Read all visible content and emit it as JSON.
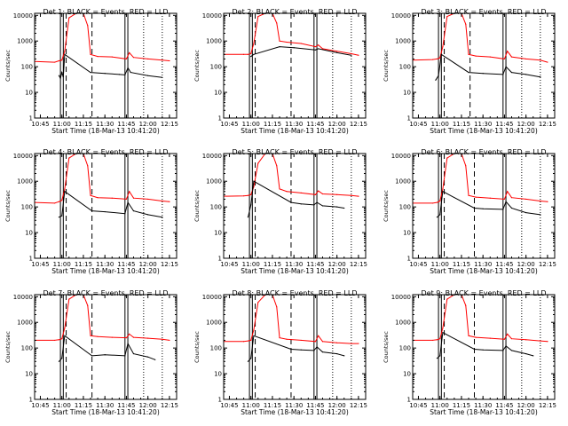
{
  "chart_data": [
    {
      "type": "line",
      "title": "Det 1: BLACK = Events, RED = LLD",
      "xlabel": "Start Time (18-Mar-13 10:41:20)",
      "ylabel": "Counts/sec",
      "yscale": "log",
      "ylim": [
        1,
        12000
      ],
      "xlim": [
        "10:41",
        "12:20"
      ],
      "x_ticks": [
        "10:45",
        "11:00",
        "11:15",
        "11:30",
        "11:45",
        "12:00",
        "12:15"
      ],
      "y_ticks": [
        "1",
        "10",
        "100",
        "1000",
        "10000"
      ],
      "series": [
        {
          "name": "RED = LLD",
          "color": "#ff0000",
          "x": [
            "10:41",
            "10:55",
            "10:58",
            "11:00",
            "11:02",
            "11:05",
            "11:10",
            "11:15",
            "11:18",
            "11:20",
            "11:25",
            "11:35",
            "11:45",
            "11:47",
            "11:50",
            "12:00",
            "12:10",
            "12:15"
          ],
          "y": [
            160,
            150,
            170,
            180,
            400,
            8000,
            12000,
            12000,
            4000,
            300,
            250,
            240,
            200,
            350,
            230,
            200,
            180,
            170
          ]
        },
        {
          "name": "BLACK = Events",
          "color": "#000000",
          "x": [
            "10:58",
            "10:59",
            "11:00",
            "11:01",
            "11:02",
            "11:20",
            "11:30",
            "11:40",
            "11:44",
            "11:46",
            "11:48",
            "12:00",
            "12:10"
          ],
          "y": [
            45,
            35,
            60,
            40,
            300,
            60,
            55,
            50,
            48,
            90,
            60,
            45,
            38
          ]
        }
      ],
      "solid_lines_x": [
        "10:59",
        "11:01",
        "11:44",
        "11:46"
      ],
      "dashed_lines_x": [
        "11:03",
        "11:21"
      ],
      "dotted_lines_x": [
        "11:57",
        "12:10"
      ]
    },
    {
      "type": "line",
      "title": "Det 2: BLACK = Events, RED = LLD",
      "xlabel": "Start Time (18-Mar-13 10:41:20)",
      "ylabel": "Counts/sec",
      "yscale": "log",
      "ylim": [
        1,
        12000
      ],
      "xlim": [
        "10:41",
        "12:20"
      ],
      "x_ticks": [
        "10:45",
        "11:00",
        "11:15",
        "11:30",
        "11:45",
        "12:00",
        "12:15"
      ],
      "y_ticks": [
        "1",
        "10",
        "100",
        "1000",
        "10000"
      ],
      "series": [
        {
          "name": "RED = LLD",
          "color": "#ff0000",
          "x": [
            "10:41",
            "10:55",
            "10:58",
            "11:00",
            "11:02",
            "11:05",
            "11:10",
            "11:15",
            "11:18",
            "11:20",
            "11:25",
            "11:35",
            "11:45",
            "11:47",
            "11:50",
            "12:00",
            "12:10",
            "12:15"
          ],
          "y": [
            300,
            300,
            300,
            320,
            800,
            9000,
            12000,
            12000,
            5000,
            1000,
            900,
            800,
            600,
            700,
            500,
            400,
            320,
            280
          ]
        },
        {
          "name": "BLACK = Events",
          "color": "#000000",
          "x": [
            "11:00",
            "11:02",
            "11:20",
            "11:30",
            "11:45",
            "11:47",
            "12:00",
            "12:10"
          ],
          "y": [
            250,
            300,
            600,
            550,
            450,
            500,
            350,
            280
          ]
        }
      ],
      "solid_lines_x": [
        "10:59",
        "11:01",
        "11:44",
        "11:46"
      ],
      "dashed_lines_x": [
        "11:03",
        "11:28"
      ],
      "dotted_lines_x": [
        "11:57",
        "12:10"
      ]
    },
    {
      "type": "line",
      "title": "Det 3: BLACK = Events, RED = LLD",
      "xlabel": "Start Time (18-Mar-13 10:41:20)",
      "ylabel": "Counts/sec",
      "yscale": "log",
      "ylim": [
        1,
        12000
      ],
      "xlim": [
        "10:41",
        "12:20"
      ],
      "x_ticks": [
        "10:45",
        "11:00",
        "11:15",
        "11:30",
        "11:45",
        "12:00",
        "12:15"
      ],
      "y_ticks": [
        "1",
        "10",
        "100",
        "1000",
        "10000"
      ],
      "series": [
        {
          "name": "RED = LLD",
          "color": "#ff0000",
          "x": [
            "10:41",
            "10:55",
            "10:58",
            "11:00",
            "11:02",
            "11:05",
            "11:10",
            "11:15",
            "11:18",
            "11:20",
            "11:25",
            "11:35",
            "11:45",
            "11:47",
            "11:50",
            "12:00",
            "12:10",
            "12:15"
          ],
          "y": [
            180,
            190,
            200,
            220,
            600,
            9000,
            12000,
            12000,
            4500,
            300,
            260,
            240,
            200,
            400,
            240,
            200,
            180,
            150
          ]
        },
        {
          "name": "BLACK = Events",
          "color": "#000000",
          "x": [
            "10:57",
            "10:59",
            "11:01",
            "11:20",
            "11:30",
            "11:44",
            "11:46",
            "11:50",
            "12:00",
            "12:10"
          ],
          "y": [
            30,
            45,
            300,
            60,
            55,
            50,
            100,
            60,
            50,
            40
          ]
        }
      ],
      "solid_lines_x": [
        "10:59",
        "11:01",
        "11:44",
        "11:46"
      ],
      "dashed_lines_x": [
        "11:03",
        "11:21"
      ],
      "dotted_lines_x": [
        "11:57",
        "12:10"
      ]
    },
    {
      "type": "line",
      "title": "Det 4: BLACK = Events, RED = LLD",
      "xlabel": "Start Time (18-Mar-13 10:41:20)",
      "ylabel": "Counts/sec",
      "yscale": "log",
      "ylim": [
        1,
        12000
      ],
      "xlim": [
        "10:41",
        "12:20"
      ],
      "x_ticks": [
        "10:45",
        "11:00",
        "11:15",
        "11:30",
        "11:45",
        "12:00",
        "12:15"
      ],
      "y_ticks": [
        "1",
        "10",
        "100",
        "1000",
        "10000"
      ],
      "series": [
        {
          "name": "RED = LLD",
          "color": "#ff0000",
          "x": [
            "10:41",
            "10:55",
            "10:58",
            "11:00",
            "11:02",
            "11:05",
            "11:10",
            "11:15",
            "11:18",
            "11:20",
            "11:25",
            "11:35",
            "11:45",
            "11:47",
            "11:50",
            "12:00",
            "12:10",
            "12:15"
          ],
          "y": [
            150,
            140,
            160,
            180,
            500,
            8000,
            12000,
            12000,
            4000,
            280,
            230,
            220,
            200,
            400,
            220,
            200,
            170,
            160
          ]
        },
        {
          "name": "BLACK = Events",
          "color": "#000000",
          "x": [
            "10:58",
            "11:00",
            "11:02",
            "11:21",
            "11:30",
            "11:44",
            "11:46",
            "11:50",
            "12:00",
            "12:10"
          ],
          "y": [
            40,
            45,
            400,
            70,
            65,
            55,
            150,
            70,
            50,
            40
          ]
        }
      ],
      "solid_lines_x": [
        "10:59",
        "11:01",
        "11:44",
        "11:46"
      ],
      "dashed_lines_x": [
        "11:03",
        "11:21"
      ],
      "dotted_lines_x": [
        "11:57",
        "12:10"
      ]
    },
    {
      "type": "line",
      "title": "Det 5: BLACK = Events, RED = LLD",
      "xlabel": "Start Time (18-Mar-13 10:41:20)",
      "ylabel": "Counts/sec",
      "yscale": "log",
      "ylim": [
        1,
        12000
      ],
      "xlim": [
        "10:41",
        "12:20"
      ],
      "x_ticks": [
        "10:45",
        "11:00",
        "11:15",
        "11:30",
        "11:45",
        "12:00",
        "12:15"
      ],
      "y_ticks": [
        "1",
        "10",
        "100",
        "1000",
        "10000"
      ],
      "series": [
        {
          "name": "RED = LLD",
          "color": "#ff0000",
          "x": [
            "10:41",
            "10:55",
            "10:58",
            "11:00",
            "11:02",
            "11:05",
            "11:10",
            "11:15",
            "11:18",
            "11:20",
            "11:25",
            "11:35",
            "11:45",
            "11:47",
            "11:50",
            "12:00",
            "12:10",
            "12:15"
          ],
          "y": [
            260,
            270,
            280,
            300,
            600,
            5000,
            12000,
            12000,
            4000,
            500,
            400,
            350,
            300,
            420,
            320,
            300,
            280,
            260
          ]
        },
        {
          "name": "BLACK = Events",
          "color": "#000000",
          "x": [
            "10:58",
            "11:00",
            "11:02",
            "11:28",
            "11:35",
            "11:44",
            "11:46",
            "11:50",
            "12:00",
            "12:05"
          ],
          "y": [
            40,
            120,
            1000,
            150,
            130,
            120,
            150,
            110,
            100,
            90
          ]
        }
      ],
      "solid_lines_x": [
        "10:59",
        "11:01",
        "11:44",
        "11:46"
      ],
      "dashed_lines_x": [
        "11:03",
        "11:28"
      ],
      "dotted_lines_x": [
        "11:57",
        "12:10"
      ]
    },
    {
      "type": "line",
      "title": "Det 6: BLACK = Events, RED = LLD",
      "xlabel": "Start Time (18-Mar-13 10:41:20)",
      "ylabel": "Counts/sec",
      "yscale": "log",
      "ylim": [
        1,
        12000
      ],
      "xlim": [
        "10:41",
        "12:20"
      ],
      "x_ticks": [
        "10:45",
        "11:00",
        "11:15",
        "11:30",
        "11:45",
        "12:00",
        "12:15"
      ],
      "y_ticks": [
        "1",
        "10",
        "100",
        "1000",
        "10000"
      ],
      "series": [
        {
          "name": "RED = LLD",
          "color": "#ff0000",
          "x": [
            "10:41",
            "10:55",
            "10:58",
            "11:00",
            "11:02",
            "11:05",
            "11:10",
            "11:15",
            "11:18",
            "11:20",
            "11:25",
            "11:35",
            "11:45",
            "11:47",
            "11:50",
            "12:00",
            "12:10",
            "12:15"
          ],
          "y": [
            140,
            140,
            150,
            170,
            500,
            8000,
            12000,
            12000,
            4000,
            280,
            240,
            220,
            200,
            400,
            230,
            200,
            170,
            160
          ]
        },
        {
          "name": "BLACK = Events",
          "color": "#000000",
          "x": [
            "10:58",
            "11:00",
            "11:02",
            "11:24",
            "11:30",
            "11:44",
            "11:46",
            "11:50",
            "12:00",
            "12:10"
          ],
          "y": [
            40,
            50,
            400,
            90,
            85,
            80,
            160,
            90,
            60,
            50
          ]
        }
      ],
      "solid_lines_x": [
        "10:59",
        "11:01",
        "11:44",
        "11:46"
      ],
      "dashed_lines_x": [
        "11:03",
        "11:24"
      ],
      "dotted_lines_x": [
        "11:57",
        "12:10"
      ]
    },
    {
      "type": "line",
      "title": "Det 7: BLACK = Events, RED = LLD",
      "xlabel": "Start Time (18-Mar-13 10:41:20)",
      "ylabel": "Counts/sec",
      "yscale": "log",
      "ylim": [
        1,
        12000
      ],
      "xlim": [
        "10:41",
        "12:20"
      ],
      "x_ticks": [
        "10:45",
        "11:00",
        "11:15",
        "11:30",
        "11:45",
        "12:00",
        "12:15"
      ],
      "y_ticks": [
        "1",
        "10",
        "100",
        "1000",
        "10000"
      ],
      "series": [
        {
          "name": "RED = LLD",
          "color": "#ff0000",
          "x": [
            "10:41",
            "10:55",
            "10:58",
            "11:00",
            "11:02",
            "11:05",
            "11:10",
            "11:15",
            "11:18",
            "11:20",
            "11:25",
            "11:35",
            "11:45",
            "11:47",
            "11:50",
            "12:00",
            "12:10",
            "12:15"
          ],
          "y": [
            200,
            200,
            210,
            230,
            600,
            8000,
            12000,
            12000,
            4500,
            300,
            280,
            260,
            250,
            350,
            260,
            240,
            220,
            200
          ]
        },
        {
          "name": "BLACK = Events",
          "color": "#000000",
          "x": [
            "10:58",
            "11:00",
            "11:02",
            "11:21",
            "11:30",
            "11:44",
            "11:46",
            "11:50",
            "12:00",
            "12:05"
          ],
          "y": [
            30,
            40,
            300,
            50,
            55,
            50,
            150,
            60,
            45,
            35
          ]
        }
      ],
      "solid_lines_x": [
        "10:59",
        "11:01",
        "11:44",
        "11:46"
      ],
      "dashed_lines_x": [
        "11:03",
        "11:21"
      ],
      "dotted_lines_x": [
        "11:57",
        "12:10"
      ]
    },
    {
      "type": "line",
      "title": "Det 8: BLACK = Events, RED = LLD",
      "xlabel": "Start Time (18-Mar-13 10:41:20)",
      "ylabel": "Counts/sec",
      "yscale": "log",
      "ylim": [
        1,
        12000
      ],
      "xlim": [
        "10:41",
        "12:20"
      ],
      "x_ticks": [
        "10:45",
        "11:00",
        "11:15",
        "11:30",
        "11:45",
        "12:00",
        "12:15"
      ],
      "y_ticks": [
        "1",
        "10",
        "100",
        "1000",
        "10000"
      ],
      "series": [
        {
          "name": "RED = LLD",
          "color": "#ff0000",
          "x": [
            "10:41",
            "10:55",
            "10:58",
            "11:00",
            "11:02",
            "11:05",
            "11:10",
            "11:15",
            "11:18",
            "11:20",
            "11:25",
            "11:35",
            "11:45",
            "11:47",
            "11:50",
            "12:00",
            "12:10",
            "12:15"
          ],
          "y": [
            180,
            180,
            190,
            200,
            500,
            6000,
            12000,
            12000,
            4000,
            250,
            220,
            200,
            180,
            300,
            180,
            160,
            150,
            150
          ]
        },
        {
          "name": "BLACK = Events",
          "color": "#000000",
          "x": [
            "10:58",
            "11:00",
            "11:02",
            "11:28",
            "11:35",
            "11:44",
            "11:46",
            "11:50",
            "12:00",
            "12:05"
          ],
          "y": [
            30,
            40,
            300,
            90,
            85,
            80,
            110,
            70,
            60,
            50
          ]
        }
      ],
      "solid_lines_x": [
        "10:59",
        "11:01",
        "11:44",
        "11:46"
      ],
      "dashed_lines_x": [
        "11:03",
        "11:28"
      ],
      "dotted_lines_x": [
        "11:57",
        "12:10"
      ]
    },
    {
      "type": "line",
      "title": "Det 9: BLACK = Events, RED = LLD",
      "xlabel": "Start Time (18-Mar-13 10:41:20)",
      "ylabel": "Counts/sec",
      "yscale": "log",
      "ylim": [
        1,
        12000
      ],
      "xlim": [
        "10:41",
        "12:20"
      ],
      "x_ticks": [
        "10:45",
        "11:00",
        "11:15",
        "11:30",
        "11:45",
        "12:00",
        "12:15"
      ],
      "y_ticks": [
        "1",
        "10",
        "100",
        "1000",
        "10000"
      ],
      "series": [
        {
          "name": "RED = LLD",
          "color": "#ff0000",
          "x": [
            "10:41",
            "10:55",
            "10:58",
            "11:00",
            "11:02",
            "11:05",
            "11:10",
            "11:15",
            "11:18",
            "11:20",
            "11:25",
            "11:35",
            "11:45",
            "11:47",
            "11:50",
            "12:00",
            "12:10",
            "12:15"
          ],
          "y": [
            200,
            200,
            210,
            230,
            600,
            8000,
            12000,
            12000,
            4500,
            300,
            260,
            240,
            220,
            350,
            230,
            210,
            190,
            180
          ]
        },
        {
          "name": "BLACK = Events",
          "color": "#000000",
          "x": [
            "10:58",
            "11:00",
            "11:02",
            "11:24",
            "11:30",
            "11:44",
            "11:46",
            "11:50",
            "12:00",
            "12:05"
          ],
          "y": [
            40,
            50,
            400,
            90,
            85,
            80,
            120,
            80,
            60,
            50
          ]
        }
      ],
      "solid_lines_x": [
        "10:59",
        "11:01",
        "11:44",
        "11:46"
      ],
      "dashed_lines_x": [
        "11:03",
        "11:24"
      ],
      "dotted_lines_x": [
        "11:57",
        "12:10"
      ]
    }
  ]
}
